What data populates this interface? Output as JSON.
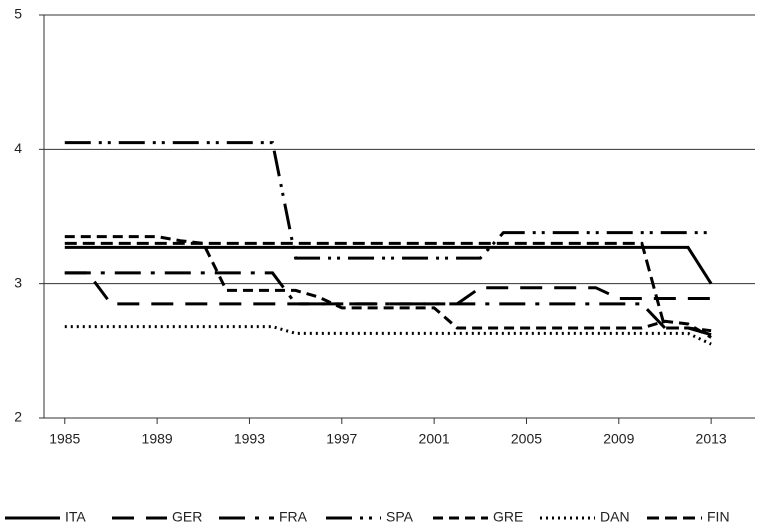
{
  "chart_data": {
    "type": "line",
    "x": [
      1985,
      1986,
      1987,
      1988,
      1989,
      1990,
      1991,
      1992,
      1993,
      1994,
      1995,
      1996,
      1997,
      1998,
      1999,
      2000,
      2001,
      2002,
      2003,
      2004,
      2005,
      2006,
      2007,
      2008,
      2009,
      2010,
      2011,
      2012,
      2013
    ],
    "xlim": [
      1984.1,
      2014.9
    ],
    "xticks": [
      1985,
      1989,
      1993,
      1997,
      2001,
      2005,
      2009,
      2013
    ],
    "ylim": [
      2,
      5
    ],
    "yticks": [
      2,
      3,
      4,
      5
    ],
    "grid": true,
    "legend": "bottom",
    "series": [
      {
        "name": "ITA",
        "color": "#000000",
        "dash": "none",
        "values": [
          3.27,
          3.27,
          3.27,
          3.27,
          3.27,
          3.27,
          3.27,
          3.27,
          3.27,
          3.27,
          3.27,
          3.27,
          3.27,
          3.27,
          3.27,
          3.27,
          3.27,
          3.27,
          3.27,
          3.27,
          3.27,
          3.27,
          3.27,
          3.27,
          3.27,
          3.27,
          3.27,
          3.27,
          3.0
        ]
      },
      {
        "name": "GER",
        "color": "#000000",
        "dash": "22 12",
        "values": [
          3.08,
          3.08,
          2.85,
          2.85,
          2.85,
          2.85,
          2.85,
          2.85,
          2.85,
          2.85,
          2.85,
          2.85,
          2.85,
          2.85,
          2.85,
          2.85,
          2.85,
          2.85,
          2.97,
          2.97,
          2.97,
          2.97,
          2.97,
          2.97,
          2.89,
          2.89,
          2.89,
          2.89,
          2.89
        ]
      },
      {
        "name": "FRA",
        "color": "#000000",
        "dash": "26 10 4 10",
        "values": [
          3.08,
          3.08,
          3.08,
          3.08,
          3.08,
          3.08,
          3.08,
          3.08,
          3.08,
          3.08,
          2.85,
          2.85,
          2.85,
          2.85,
          2.85,
          2.85,
          2.85,
          2.85,
          2.85,
          2.85,
          2.85,
          2.85,
          2.85,
          2.85,
          2.85,
          2.85,
          2.67,
          2.67,
          2.62
        ]
      },
      {
        "name": "SPA",
        "color": "#000000",
        "dash": "26 8 3 6 3 8",
        "values": [
          4.05,
          4.05,
          4.05,
          4.05,
          4.05,
          4.05,
          4.05,
          4.05,
          4.05,
          4.05,
          3.19,
          3.19,
          3.19,
          3.19,
          3.19,
          3.19,
          3.19,
          3.19,
          3.19,
          3.38,
          3.38,
          3.38,
          3.38,
          3.38,
          3.38,
          3.38,
          3.38,
          3.38,
          3.38
        ]
      },
      {
        "name": "GRE",
        "color": "#000000",
        "dash": "10 6",
        "values": [
          3.35,
          3.35,
          3.35,
          3.35,
          3.35,
          3.32,
          3.3,
          2.95,
          2.95,
          2.95,
          2.95,
          2.9,
          2.82,
          2.82,
          2.82,
          2.82,
          2.82,
          2.67,
          2.67,
          2.67,
          2.67,
          2.67,
          2.67,
          2.67,
          2.67,
          2.67,
          2.72,
          2.7,
          2.6
        ]
      },
      {
        "name": "DAN",
        "color": "#000000",
        "dash": "2 4",
        "values": [
          2.68,
          2.68,
          2.68,
          2.68,
          2.68,
          2.68,
          2.68,
          2.68,
          2.68,
          2.68,
          2.63,
          2.63,
          2.63,
          2.63,
          2.63,
          2.63,
          2.63,
          2.63,
          2.63,
          2.63,
          2.63,
          2.63,
          2.63,
          2.63,
          2.63,
          2.63,
          2.63,
          2.63,
          2.55
        ]
      },
      {
        "name": "FIN",
        "color": "#000000",
        "dash": "12 6",
        "values": [
          3.3,
          3.3,
          3.3,
          3.3,
          3.3,
          3.3,
          3.3,
          3.3,
          3.3,
          3.3,
          3.3,
          3.3,
          3.3,
          3.3,
          3.3,
          3.3,
          3.3,
          3.3,
          3.3,
          3.3,
          3.3,
          3.3,
          3.3,
          3.3,
          3.3,
          3.3,
          2.67,
          2.67,
          2.65
        ]
      }
    ]
  }
}
